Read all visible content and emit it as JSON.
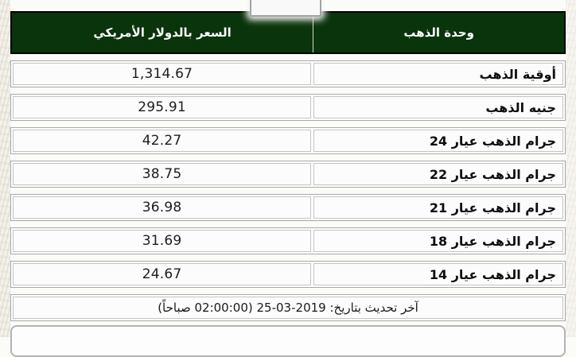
{
  "table": {
    "header": {
      "price_label": "السعر بالدولار الأمريكي",
      "unit_label": "وحدة الذهب"
    },
    "rows": [
      {
        "unit": "أوقية الذهب",
        "price": "1,314.67"
      },
      {
        "unit": "جنيه الذهب",
        "price": "295.91"
      },
      {
        "unit": "جرام الذهب عيار 24",
        "price": "42.27"
      },
      {
        "unit": "جرام الذهب عيار 22",
        "price": "38.75"
      },
      {
        "unit": "جرام الذهب عيار 21",
        "price": "36.98"
      },
      {
        "unit": "جرام الذهب عيار 18",
        "price": "31.69"
      },
      {
        "unit": "جرام الذهب عيار 14",
        "price": "24.67"
      }
    ],
    "footer": {
      "last_updated": "آخر تحديث بتاريخ: 2019-03-25 (02:00:00 صباحاً)"
    }
  },
  "colors": {
    "header_bg": "#0a340b",
    "header_text": "#ffffff",
    "header_border": "#000000",
    "row_border_outer": "#a8a8a8",
    "row_border_inner": "#c4c4c4",
    "page_bg": "#fbfbf8"
  }
}
